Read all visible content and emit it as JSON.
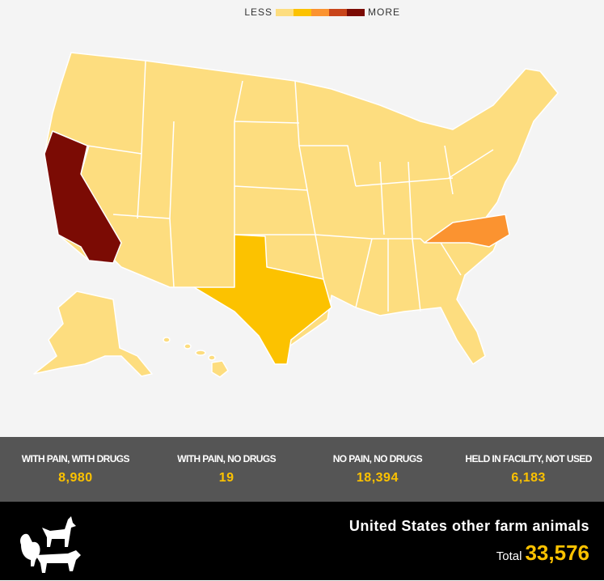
{
  "legend": {
    "low_label": "LESS",
    "high_label": "MORE",
    "colors": [
      "#fddd7f",
      "#fcc200",
      "#fb9330",
      "#c8441a",
      "#7b0b04"
    ]
  },
  "stats": [
    {
      "label": "WITH PAIN, WITH DRUGS",
      "value": "8,980"
    },
    {
      "label": "WITH PAIN, NO DRUGS",
      "value": "19"
    },
    {
      "label": "NO PAIN, NO DRUGS",
      "value": "18,394"
    },
    {
      "label": "HELD IN FACILITY, NOT USED",
      "value": "6,183"
    }
  ],
  "footer": {
    "title": "United States other farm animals",
    "total_label": "Total",
    "total_value": "33,576"
  }
}
